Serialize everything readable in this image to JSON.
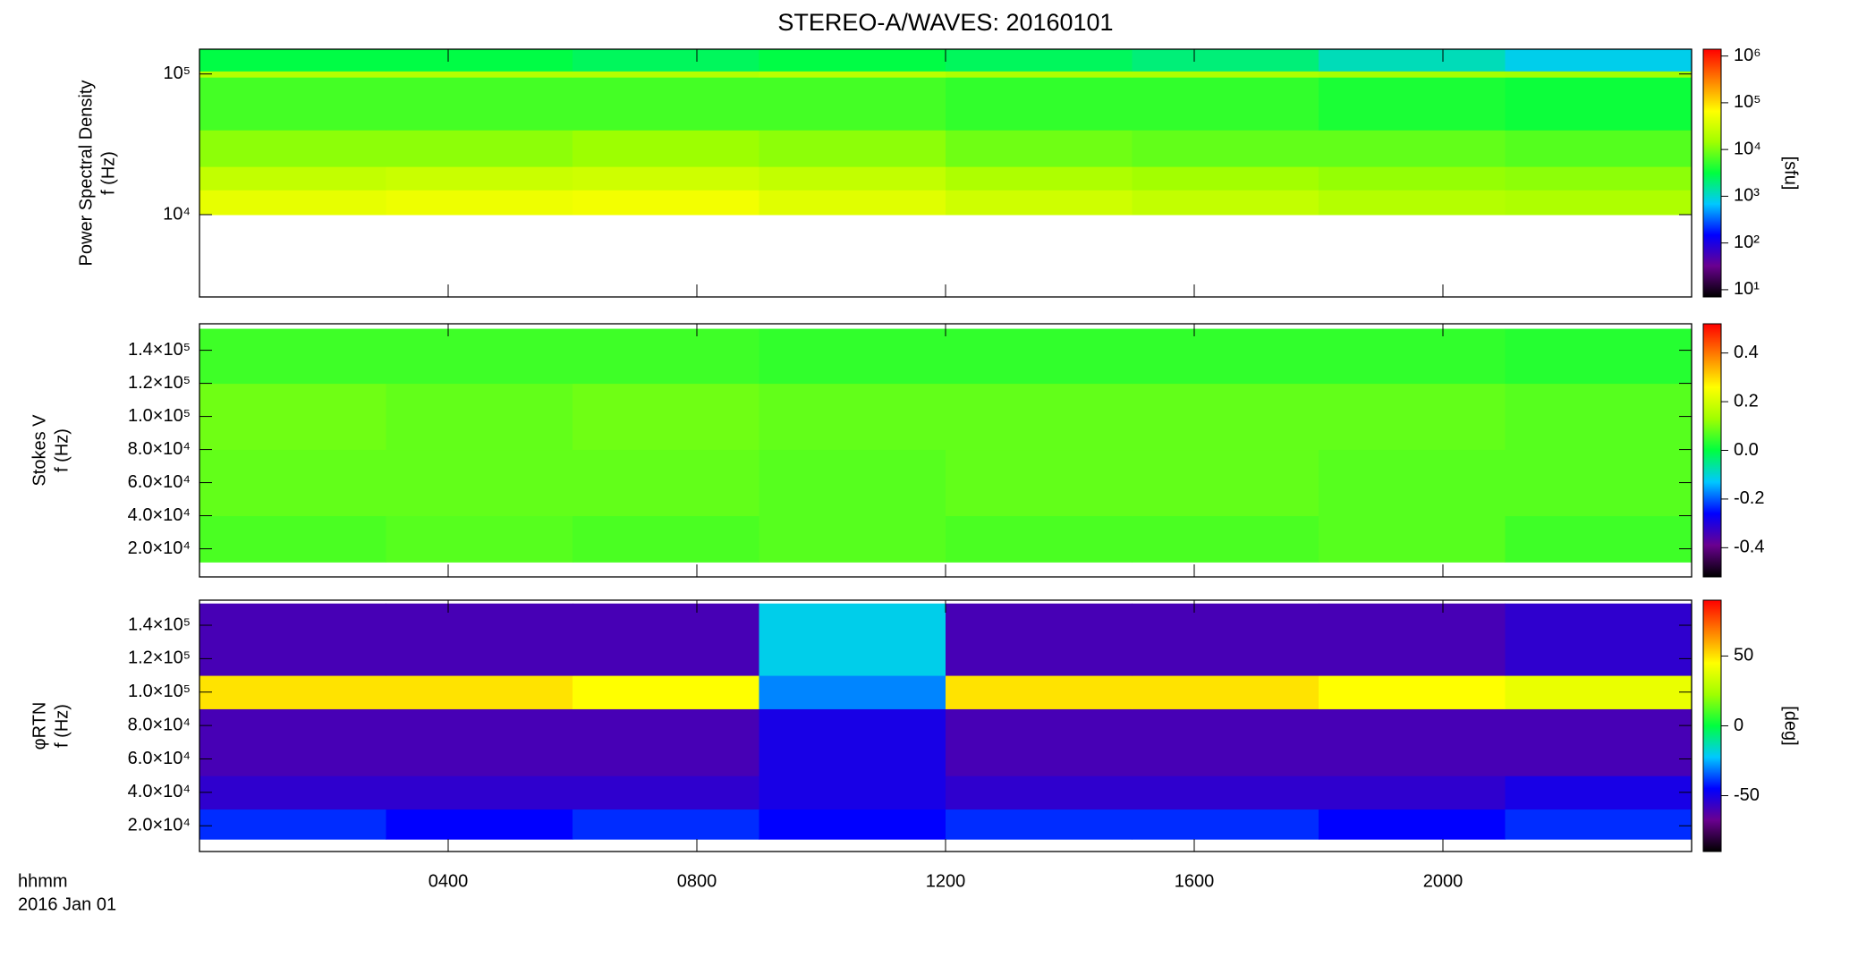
{
  "title": "STEREO-A/WAVES: 20160101",
  "time_axis": {
    "label": "hhmm",
    "date": "2016 Jan 01",
    "xlim": [
      0,
      24
    ],
    "xticks": [
      {
        "value": 4,
        "label": "0400"
      },
      {
        "value": 8,
        "label": "0800"
      },
      {
        "value": 12,
        "label": "1200"
      },
      {
        "value": 16,
        "label": "1600"
      },
      {
        "value": 20,
        "label": "2000"
      }
    ]
  },
  "colormap": [
    "#000000",
    "#6a0090",
    "#0000ff",
    "#00c8ff",
    "#00ff40",
    "#a0ff00",
    "#ffff00",
    "#ff8000",
    "#ff0000"
  ],
  "chart_data": [
    {
      "type": "heatmap",
      "ylabel": [
        "Power Spectral Density",
        "f (Hz)"
      ],
      "ylog": true,
      "ylim": [
        2600,
        150000
      ],
      "yticks": [
        {
          "value": 10000,
          "label": "10⁴"
        },
        {
          "value": 100000,
          "label": "10⁵"
        }
      ],
      "x_bins": [
        0,
        3,
        6,
        9,
        12,
        15,
        18,
        21,
        24
      ],
      "y_bins": [
        10000,
        15000,
        22000,
        40000,
        95000,
        105000,
        150000
      ],
      "values": [
        [
          45000,
          50000,
          55000,
          40000,
          30000,
          25000,
          20000,
          18000
        ],
        [
          25000,
          28000,
          30000,
          25000,
          18000,
          15000,
          13000,
          12000
        ],
        [
          12000,
          12000,
          14000,
          12000,
          9000,
          8000,
          8000,
          7000
        ],
        [
          6000,
          6000,
          6000,
          6000,
          5000,
          5000,
          4000,
          3500
        ],
        [
          20000,
          20000,
          20000,
          22000,
          18000,
          18000,
          16000,
          15000
        ],
        [
          3000,
          3000,
          2500,
          3000,
          2500,
          2000,
          1200,
          800
        ]
      ],
      "colorbar": {
        "label": "[sfu]",
        "clog": true,
        "clim": [
          7,
          1400000
        ],
        "cticks": [
          {
            "value": 10,
            "label": "10¹"
          },
          {
            "value": 100,
            "label": "10²"
          },
          {
            "value": 1000,
            "label": "10³"
          },
          {
            "value": 10000,
            "label": "10⁴"
          },
          {
            "value": 100000,
            "label": "10⁵"
          },
          {
            "value": 1000000,
            "label": "10⁶"
          }
        ]
      }
    },
    {
      "type": "heatmap",
      "ylabel": [
        "Stokes V",
        "f (Hz)"
      ],
      "ylog": false,
      "ylim": [
        3000,
        156000
      ],
      "yticks": [
        {
          "value": 20000,
          "label": "2.0×10⁴"
        },
        {
          "value": 40000,
          "label": "4.0×10⁴"
        },
        {
          "value": 60000,
          "label": "6.0×10⁴"
        },
        {
          "value": 80000,
          "label": "8.0×10⁴"
        },
        {
          "value": 100000,
          "label": "1.0×10⁵"
        },
        {
          "value": 120000,
          "label": "1.2×10⁵"
        },
        {
          "value": 140000,
          "label": "1.4×10⁵"
        }
      ],
      "x_bins": [
        0,
        3,
        6,
        9,
        12,
        15,
        18,
        21,
        24
      ],
      "y_bins": [
        12000,
        40000,
        80000,
        120000,
        153000
      ],
      "values": [
        [
          0.06,
          0.07,
          0.06,
          0.07,
          0.06,
          0.06,
          0.07,
          0.05
        ],
        [
          0.08,
          0.08,
          0.08,
          0.07,
          0.08,
          0.08,
          0.07,
          0.07
        ],
        [
          0.09,
          0.08,
          0.09,
          0.08,
          0.08,
          0.08,
          0.08,
          0.07
        ],
        [
          0.05,
          0.05,
          0.05,
          0.04,
          0.04,
          0.04,
          0.04,
          0.03
        ]
      ],
      "colorbar": {
        "clog": false,
        "clim": [
          -0.52,
          0.52
        ],
        "cticks": [
          -0.4,
          -0.2,
          {
            "value": 0,
            "label": "0.0"
          },
          0.2,
          0.4
        ]
      }
    },
    {
      "type": "heatmap",
      "ylabel": [
        "φRTN",
        "f (Hz)"
      ],
      "ylog": false,
      "ylim": [
        4600,
        155000
      ],
      "yticks": [
        {
          "value": 20000,
          "label": "2.0×10⁴"
        },
        {
          "value": 40000,
          "label": "4.0×10⁴"
        },
        {
          "value": 60000,
          "label": "6.0×10⁴"
        },
        {
          "value": 80000,
          "label": "8.0×10⁴"
        },
        {
          "value": 100000,
          "label": "1.0×10⁵"
        },
        {
          "value": 120000,
          "label": "1.2×10⁵"
        },
        {
          "value": 140000,
          "label": "1.4×10⁵"
        }
      ],
      "x_bins": [
        0,
        3,
        6,
        9,
        12,
        15,
        18,
        21,
        24
      ],
      "y_bins": [
        12000,
        30000,
        50000,
        90000,
        110000,
        153000
      ],
      "values": [
        [
          -40,
          -45,
          -40,
          -45,
          -40,
          -40,
          -45,
          -40
        ],
        [
          -55,
          -55,
          -55,
          -50,
          -55,
          -55,
          -55,
          -50
        ],
        [
          -60,
          -60,
          -60,
          -50,
          -60,
          -60,
          -60,
          -60
        ],
        [
          50,
          50,
          45,
          -30,
          50,
          50,
          45,
          40
        ],
        [
          -60,
          -60,
          -60,
          -20,
          -60,
          -60,
          -60,
          -55
        ]
      ],
      "colorbar": {
        "label": "[deg]",
        "clog": false,
        "clim": [
          -90,
          90
        ],
        "cticks": [
          -50,
          0,
          50
        ]
      }
    }
  ]
}
